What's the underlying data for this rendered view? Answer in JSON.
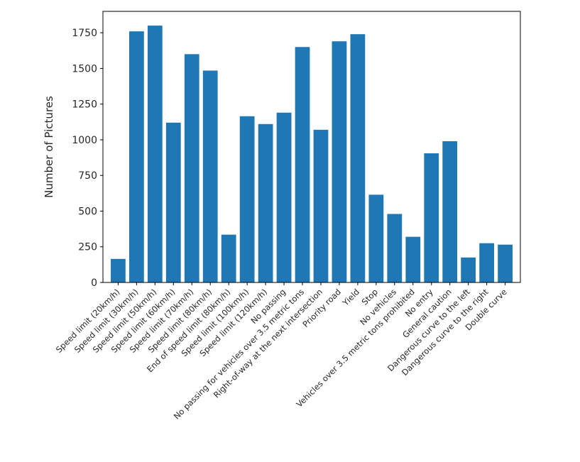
{
  "chart_data": {
    "type": "bar",
    "title": "",
    "xlabel": "",
    "ylabel": "Number of Pictures",
    "ylim": [
      0,
      1900
    ],
    "yticks": [
      0,
      250,
      500,
      750,
      1000,
      1250,
      1500,
      1750
    ],
    "grid": false,
    "bar_color": "#1f77b4",
    "categories": [
      "Speed limit (20km/h)",
      "Speed limit (30km/h)",
      "Speed limit (50km/h)",
      "Speed limit (60km/h)",
      "Speed limit (70km/h)",
      "Speed limit (80km/h)",
      "End of speed limit (80km/h)",
      "Speed limit (100km/h)",
      "Speed limit (120km/h)",
      "No passing",
      "No passing for vehicles over 3.5 metric tons",
      "Right-of-way at the next intersection",
      "Priority road",
      "Yield",
      "Stop",
      "No vehicles",
      "Vehicles over 3.5 metric tons prohibited",
      "No entry",
      "General caution",
      "Dangerous curve to the left",
      "Dangerous curve to the right",
      "Double curve"
    ],
    "values": [
      165,
      1760,
      1800,
      1120,
      1600,
      1485,
      335,
      1165,
      1110,
      1190,
      1650,
      1070,
      1690,
      1740,
      615,
      480,
      320,
      905,
      990,
      175,
      275,
      265
    ]
  }
}
